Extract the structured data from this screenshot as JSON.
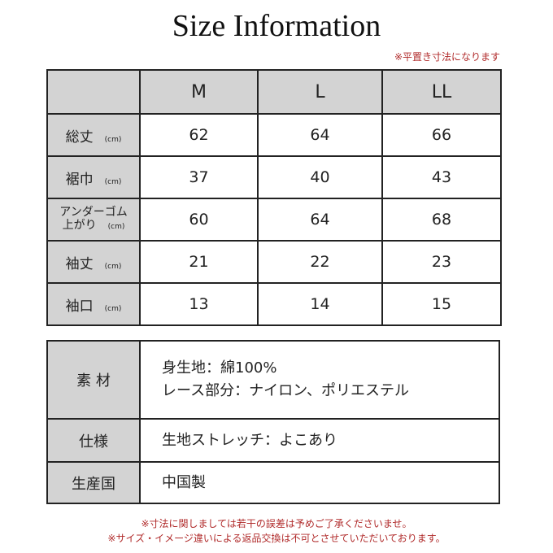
{
  "title": "Size Information",
  "note": "※平置き寸法になります",
  "size_table": {
    "headers": [
      "M",
      "L",
      "LL"
    ],
    "unit": "(cm)",
    "rows": [
      {
        "label": "総丈",
        "values": [
          "62",
          "64",
          "66"
        ]
      },
      {
        "label": "裾巾",
        "values": [
          "37",
          "40",
          "43"
        ]
      },
      {
        "label1": "アンダーゴム",
        "label2": "上がり",
        "values": [
          "60",
          "64",
          "68"
        ]
      },
      {
        "label": "袖丈",
        "values": [
          "21",
          "22",
          "23"
        ]
      },
      {
        "label": "袖口",
        "values": [
          "13",
          "14",
          "15"
        ]
      }
    ]
  },
  "info_table": {
    "rows": [
      {
        "label": "素 材",
        "lines": [
          "身生地：綿100%",
          "レース部分：ナイロン、ポリエステル"
        ]
      },
      {
        "label": "仕様",
        "lines": [
          "生地ストレッチ：よこあり"
        ]
      },
      {
        "label": "生産国",
        "lines": [
          "中国製"
        ]
      }
    ]
  },
  "footer": [
    "※寸法に関しましては若干の誤差は予めご了承くださいませ。",
    "※サイズ・イメージ違いによる返品交換は不可とさせていただいております。"
  ]
}
